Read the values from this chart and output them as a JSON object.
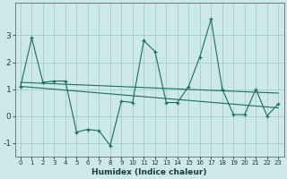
{
  "xlabel": "Humidex (Indice chaleur)",
  "background_color": "#cce8e8",
  "grid_color": "#aacfcf",
  "line_color": "#1a6e62",
  "x_data": [
    0,
    1,
    2,
    3,
    4,
    5,
    6,
    7,
    8,
    9,
    10,
    11,
    12,
    13,
    14,
    15,
    16,
    17,
    18,
    19,
    20,
    21,
    22,
    23
  ],
  "y_main": [
    1.1,
    2.9,
    1.25,
    1.3,
    1.3,
    -0.6,
    -0.5,
    -0.55,
    -1.1,
    0.55,
    0.5,
    2.8,
    2.4,
    0.5,
    0.5,
    1.1,
    2.2,
    3.6,
    1.0,
    0.05,
    0.05,
    1.0,
    0.0,
    0.45
  ],
  "trend1_start": 1.25,
  "trend1_end": 0.85,
  "trend2_start": 1.1,
  "trend2_end": 0.3,
  "ylim": [
    -1.5,
    4.2
  ],
  "xlim": [
    -0.5,
    23.5
  ],
  "yticks": [
    -1,
    0,
    1,
    2,
    3
  ]
}
